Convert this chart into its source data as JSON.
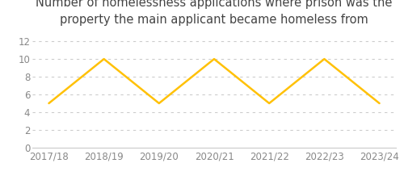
{
  "title": "Number of homelessness applications where prison was the\nproperty the main applicant became homeless from",
  "categories": [
    "2017/18",
    "2018/19",
    "2019/20",
    "2020/21",
    "2021/22",
    "2022/23",
    "2023/24"
  ],
  "values": [
    5,
    10,
    5,
    10,
    5,
    10,
    5
  ],
  "line_color": "#FFC107",
  "line_width": 1.8,
  "ylim": [
    0,
    13
  ],
  "yticks": [
    0,
    2,
    4,
    6,
    8,
    10,
    12
  ],
  "grid_color": "#cccccc",
  "grid_linestyle": "dotted",
  "title_fontsize": 10.5,
  "tick_fontsize": 8.5,
  "background_color": "#ffffff",
  "title_color": "#444444",
  "tick_color": "#888888"
}
